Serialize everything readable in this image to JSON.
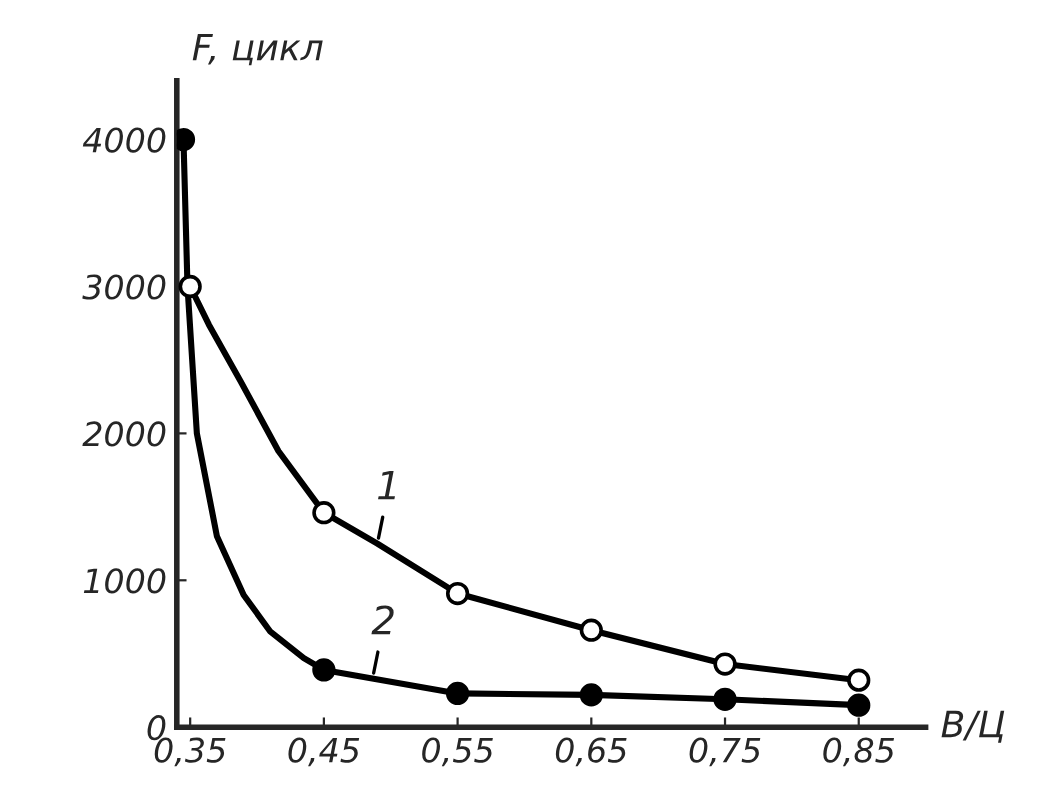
{
  "chart_data": {
    "type": "line",
    "xlabel": "В/Ц",
    "ylabel": "F, цикл",
    "xlim": [
      0.34,
      0.9
    ],
    "ylim": [
      0,
      4400
    ],
    "xticks": [
      {
        "value": 0.35,
        "label": "0,35"
      },
      {
        "value": 0.45,
        "label": "0,45"
      },
      {
        "value": 0.55,
        "label": "0,55"
      },
      {
        "value": 0.65,
        "label": "0,65"
      },
      {
        "value": 0.75,
        "label": "0,75"
      },
      {
        "value": 0.85,
        "label": "0,85"
      }
    ],
    "yticks": [
      0,
      1000,
      2000,
      3000,
      4000
    ],
    "series": [
      {
        "name": "1",
        "color": "#000000",
        "marker": "none",
        "x": [
          0.35,
          0.364,
          0.388,
          0.416,
          0.45,
          0.49,
          0.55,
          0.65,
          0.75,
          0.85
        ],
        "values": [
          3000,
          2740,
          2350,
          1880,
          1460,
          1250,
          910,
          660,
          430,
          320
        ]
      },
      {
        "name": "2",
        "color": "#000000",
        "marker": "none",
        "x": [
          0.345,
          0.348,
          0.355,
          0.37,
          0.39,
          0.41,
          0.435,
          0.45,
          0.55,
          0.65,
          0.75,
          0.85
        ],
        "values": [
          4000,
          3000,
          2000,
          1300,
          900,
          650,
          470,
          390,
          230,
          220,
          190,
          150
        ]
      },
      {
        "type": "scatter",
        "color": "#ffffff",
        "marker": "circle",
        "x": [
          0.35,
          0.45,
          0.55,
          0.65,
          0.75,
          0.85
        ],
        "values": [
          3000,
          1460,
          910,
          660,
          430,
          320
        ]
      },
      {
        "type": "scatter",
        "color": "#000000",
        "marker": "circle",
        "x": [
          0.345,
          0.45,
          0.55,
          0.65,
          0.75,
          0.85
        ],
        "values": [
          4000,
          390,
          230,
          220,
          190,
          150
        ]
      }
    ],
    "grid": false
  }
}
